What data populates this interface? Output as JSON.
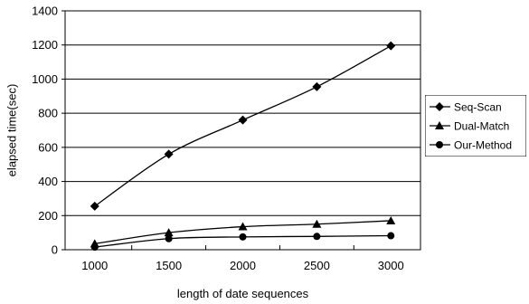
{
  "chart_data": {
    "type": "line",
    "title": "",
    "xlabel": "length of date sequences",
    "ylabel": "elapsed time(sec)",
    "x": [
      1000,
      1500,
      2000,
      2500,
      3000
    ],
    "xticks": [
      "1000",
      "1500",
      "2000",
      "2500",
      "3000"
    ],
    "yticks": [
      "0",
      "200",
      "400",
      "600",
      "800",
      "1000",
      "1200",
      "1400"
    ],
    "ylim": [
      0,
      1400
    ],
    "grid": "horizontal",
    "legend_position": "right",
    "series": [
      {
        "name": "Seq-Scan",
        "marker": "diamond",
        "values": [
          255,
          560,
          760,
          955,
          1195
        ]
      },
      {
        "name": "Dual-Match",
        "marker": "triangle",
        "values": [
          35,
          100,
          135,
          150,
          170
        ]
      },
      {
        "name": "Our-Method",
        "marker": "circle",
        "values": [
          15,
          65,
          75,
          78,
          82
        ]
      }
    ]
  }
}
